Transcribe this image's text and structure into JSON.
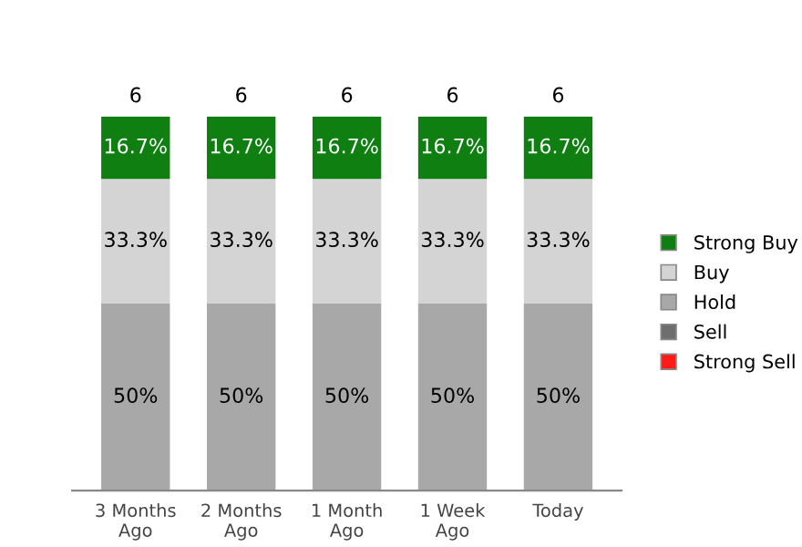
{
  "chart_data": {
    "type": "bar",
    "stacked": true,
    "categories": [
      "3 Months Ago",
      "2 Months Ago",
      "1 Month Ago",
      "1 Week Ago",
      "Today"
    ],
    "series": [
      {
        "name": "Strong Sell",
        "color": "#ff1a1a",
        "values": [
          null,
          null,
          null,
          null,
          null
        ]
      },
      {
        "name": "Sell",
        "color": "#6e6e6e",
        "values": [
          null,
          null,
          null,
          null,
          null
        ]
      },
      {
        "name": "Hold",
        "color": "#a8a8a8",
        "values": [
          50,
          50,
          50,
          50,
          50
        ],
        "value_labels": [
          "50%",
          "50%",
          "50%",
          "50%",
          "50%"
        ]
      },
      {
        "name": "Buy",
        "color": "#d4d4d4",
        "values": [
          33.3,
          33.3,
          33.3,
          33.3,
          33.3
        ],
        "value_labels": [
          "33.3%",
          "33.3%",
          "33.3%",
          "33.3%",
          "33.3%"
        ]
      },
      {
        "name": "Strong Buy",
        "color": "#0f7f12",
        "values": [
          16.7,
          16.7,
          16.7,
          16.7,
          16.7
        ],
        "value_labels": [
          "16.7%",
          "16.7%",
          "16.7%",
          "16.7%",
          "16.7%"
        ]
      }
    ],
    "annotations": [
      "6",
      "6",
      "6",
      "6",
      "6"
    ],
    "legend": "right",
    "grid": false
  }
}
